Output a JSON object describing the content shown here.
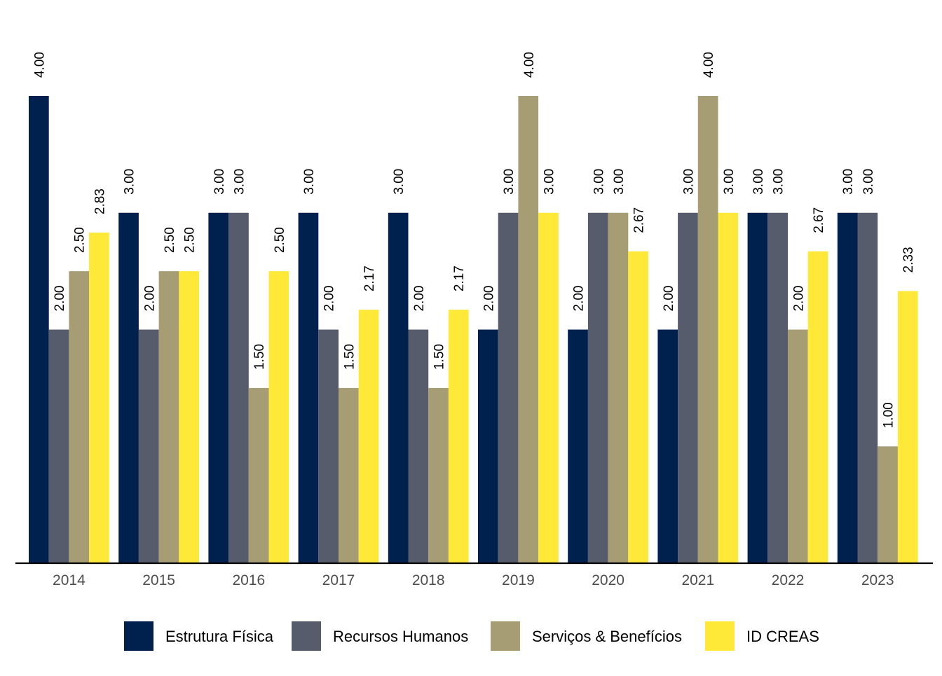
{
  "chart_data": {
    "type": "bar",
    "title": "",
    "xlabel": "",
    "ylabel": "",
    "ylim": [
      0,
      4.0
    ],
    "grid": false,
    "legend_position": "bottom",
    "categories": [
      "2014",
      "2015",
      "2016",
      "2017",
      "2018",
      "2019",
      "2020",
      "2021",
      "2022",
      "2023"
    ],
    "series": [
      {
        "name": "Estrutura Física",
        "color": "#00204d",
        "values": [
          4.0,
          3.0,
          3.0,
          3.0,
          3.0,
          2.0,
          2.0,
          2.0,
          3.0,
          3.0
        ],
        "labels": [
          "4.00",
          "3.00",
          "3.00",
          "3.00",
          "3.00",
          "2.00",
          "2.00",
          "2.00",
          "3.00",
          "3.00"
        ]
      },
      {
        "name": "Recursos Humanos",
        "color": "#575c6d",
        "values": [
          2.0,
          2.0,
          3.0,
          2.0,
          2.0,
          3.0,
          3.0,
          3.0,
          3.0,
          3.0
        ],
        "labels": [
          "2.00",
          "2.00",
          "3.00",
          "2.00",
          "2.00",
          "3.00",
          "3.00",
          "3.00",
          "3.00",
          "3.00"
        ]
      },
      {
        "name": "Serviços & Benefícios",
        "color": "#a69d75",
        "values": [
          2.5,
          2.5,
          1.5,
          1.5,
          1.5,
          4.0,
          3.0,
          4.0,
          2.0,
          1.0
        ],
        "labels": [
          "2.50",
          "2.50",
          "1.50",
          "1.50",
          "1.50",
          "4.00",
          "3.00",
          "4.00",
          "2.00",
          "1.00"
        ]
      },
      {
        "name": "ID CREAS",
        "color": "#fee838",
        "values": [
          2.83,
          2.5,
          2.5,
          2.17,
          2.17,
          3.0,
          2.67,
          3.0,
          2.67,
          2.33
        ],
        "labels": [
          "2.83",
          "2.50",
          "2.50",
          "2.17",
          "2.17",
          "3.00",
          "2.67",
          "3.00",
          "2.67",
          "2.33"
        ]
      }
    ]
  }
}
